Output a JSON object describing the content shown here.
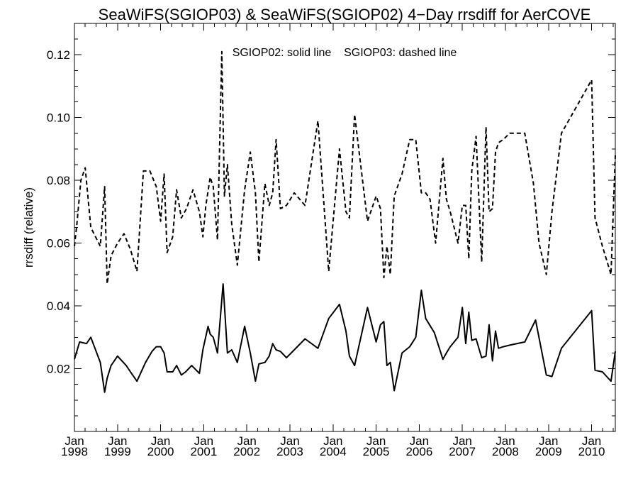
{
  "chart_data": {
    "type": "line",
    "title": "SeaWiFS(SGIOP03) & SeaWiFS(SGIOP02) 4−Day rrsdiff for AerCOVE",
    "annotation": "SGIOP02: solid line    SGIOP03: dashed line",
    "ylabel": "rrsdiff (relative)",
    "xlabel": "",
    "xlim": [
      1998.0,
      2010.55
    ],
    "ylim": [
      0.0,
      0.13
    ],
    "yticks": [
      0.02,
      0.04,
      0.06,
      0.08,
      0.1,
      0.12
    ],
    "ytick_labels": [
      "0.02",
      "0.04",
      "0.06",
      "0.08",
      "0.10",
      "0.12"
    ],
    "xticks": [
      1998,
      1999,
      2000,
      2001,
      2002,
      2003,
      2004,
      2005,
      2006,
      2007,
      2008,
      2009,
      2010
    ],
    "xtick_labels": [
      [
        "Jan",
        "1998"
      ],
      [
        "Jan",
        "1999"
      ],
      [
        "Jan",
        "2000"
      ],
      [
        "Jan",
        "2001"
      ],
      [
        "Jan",
        "2002"
      ],
      [
        "Jan",
        "2003"
      ],
      [
        "Jan",
        "2004"
      ],
      [
        "Jan",
        "2005"
      ],
      [
        "Jan",
        "2006"
      ],
      [
        "Jan",
        "2007"
      ],
      [
        "Jan",
        "2008"
      ],
      [
        "Jan",
        "2009"
      ],
      [
        "Jan",
        "2010"
      ]
    ],
    "grid": false,
    "series": [
      {
        "name": "SGIOP02",
        "style": "solid",
        "color": "#000000",
        "x": [
          1998.0,
          1998.12,
          1998.28,
          1998.38,
          1998.6,
          1998.7,
          1998.76,
          1998.85,
          1999.0,
          1999.2,
          1999.3,
          1999.45,
          1999.65,
          1999.8,
          1999.9,
          2000.0,
          2000.08,
          2000.15,
          2000.28,
          2000.37,
          2000.48,
          2000.58,
          2000.72,
          2000.9,
          2000.98,
          2001.1,
          2001.15,
          2001.22,
          2001.32,
          2001.45,
          2001.55,
          2001.65,
          2001.78,
          2001.95,
          2002.08,
          2002.2,
          2002.28,
          2002.42,
          2002.52,
          2002.6,
          2002.68,
          2002.78,
          2002.92,
          2003.1,
          2003.35,
          2003.65,
          2003.9,
          2004.15,
          2004.3,
          2004.38,
          2004.5,
          2004.8,
          2005.0,
          2005.1,
          2005.18,
          2005.25,
          2005.33,
          2005.42,
          2005.6,
          2005.78,
          2005.92,
          2006.05,
          2006.15,
          2006.35,
          2006.55,
          2006.63,
          2006.72,
          2006.9,
          2007.0,
          2007.08,
          2007.15,
          2007.22,
          2007.32,
          2007.45,
          2007.55,
          2007.62,
          2007.7,
          2007.77,
          2007.84,
          2007.95,
          2008.1,
          2008.45,
          2008.7,
          2008.95,
          2009.08,
          2009.3,
          2010.0,
          2010.08,
          2010.25,
          2010.45,
          2010.55
        ],
        "y": [
          0.023,
          0.0285,
          0.028,
          0.03,
          0.022,
          0.0125,
          0.017,
          0.021,
          0.024,
          0.021,
          0.019,
          0.016,
          0.022,
          0.0255,
          0.027,
          0.027,
          0.025,
          0.019,
          0.019,
          0.021,
          0.018,
          0.019,
          0.021,
          0.0185,
          0.026,
          0.0335,
          0.031,
          0.03,
          0.025,
          0.047,
          0.025,
          0.026,
          0.022,
          0.0335,
          0.025,
          0.016,
          0.0215,
          0.022,
          0.024,
          0.028,
          0.026,
          0.0255,
          0.0235,
          0.026,
          0.0295,
          0.0265,
          0.036,
          0.0405,
          0.032,
          0.024,
          0.021,
          0.0395,
          0.0285,
          0.034,
          0.035,
          0.021,
          0.022,
          0.013,
          0.025,
          0.027,
          0.03,
          0.045,
          0.036,
          0.0315,
          0.023,
          0.025,
          0.027,
          0.03,
          0.0395,
          0.028,
          0.038,
          0.029,
          0.0295,
          0.0235,
          0.024,
          0.034,
          0.0225,
          0.032,
          0.0265,
          0.027,
          0.0275,
          0.0285,
          0.0355,
          0.018,
          0.0175,
          0.0265,
          0.0385,
          0.0195,
          0.019,
          0.016,
          0.0255
        ]
      },
      {
        "name": "SGIOP03",
        "style": "dashed",
        "color": "#000000",
        "x": [
          1998.0,
          1998.05,
          1998.15,
          1998.25,
          1998.38,
          1998.6,
          1998.7,
          1998.76,
          1998.85,
          1999.0,
          1999.15,
          1999.3,
          1999.45,
          1999.6,
          1999.75,
          1999.9,
          2000.0,
          2000.08,
          2000.15,
          2000.28,
          2000.37,
          2000.48,
          2000.6,
          2000.75,
          2000.9,
          2000.98,
          2001.05,
          2001.15,
          2001.22,
          2001.32,
          2001.42,
          2001.48,
          2001.55,
          2001.65,
          2001.78,
          2001.95,
          2002.08,
          2002.2,
          2002.28,
          2002.42,
          2002.52,
          2002.6,
          2002.68,
          2002.78,
          2002.92,
          2003.1,
          2003.35,
          2003.65,
          2003.9,
          2004.15,
          2004.3,
          2004.38,
          2004.5,
          2004.8,
          2005.0,
          2005.1,
          2005.18,
          2005.25,
          2005.33,
          2005.42,
          2005.6,
          2005.78,
          2005.92,
          2006.05,
          2006.15,
          2006.25,
          2006.38,
          2006.55,
          2006.63,
          2006.72,
          2006.9,
          2007.0,
          2007.08,
          2007.15,
          2007.22,
          2007.32,
          2007.45,
          2007.55,
          2007.62,
          2007.7,
          2007.77,
          2007.84,
          2007.95,
          2008.1,
          2008.45,
          2008.65,
          2008.78,
          2008.95,
          2009.08,
          2009.3,
          2010.0,
          2010.08,
          2010.25,
          2010.45,
          2010.55
        ],
        "y": [
          0.059,
          0.065,
          0.08,
          0.084,
          0.065,
          0.059,
          0.078,
          0.047,
          0.056,
          0.06,
          0.063,
          0.058,
          0.051,
          0.083,
          0.083,
          0.078,
          0.067,
          0.082,
          0.057,
          0.062,
          0.077,
          0.068,
          0.071,
          0.077,
          0.07,
          0.062,
          0.072,
          0.081,
          0.078,
          0.061,
          0.121,
          0.075,
          0.085,
          0.066,
          0.053,
          0.077,
          0.089,
          0.076,
          0.054,
          0.079,
          0.072,
          0.076,
          0.093,
          0.071,
          0.072,
          0.076,
          0.072,
          0.099,
          0.051,
          0.09,
          0.07,
          0.068,
          0.101,
          0.067,
          0.075,
          0.071,
          0.049,
          0.059,
          0.05,
          0.075,
          0.082,
          0.093,
          0.093,
          0.076,
          0.076,
          0.074,
          0.06,
          0.087,
          0.074,
          0.07,
          0.06,
          0.072,
          0.072,
          0.055,
          0.083,
          0.094,
          0.054,
          0.097,
          0.07,
          0.071,
          0.089,
          0.092,
          0.093,
          0.095,
          0.095,
          0.079,
          0.06,
          0.05,
          0.07,
          0.095,
          0.112,
          0.068,
          0.059,
          0.05,
          0.088
        ]
      }
    ]
  }
}
